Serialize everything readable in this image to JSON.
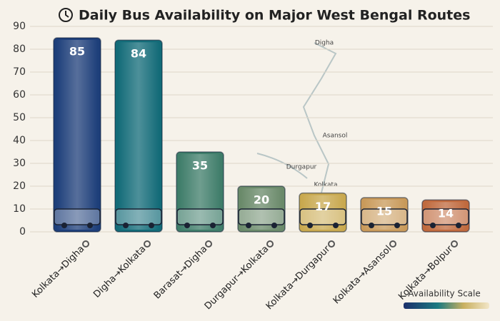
{
  "chart_data": {
    "type": "bar",
    "title": "Daily Bus Availability on Major West Bengal Routes",
    "categories": [
      "Kolkata→Digha",
      "Digha→Kolkata",
      "Barasat→Digha",
      "Durgapur→Kolkata",
      "Kolkata→Durgapur",
      "Kolkata→Asansol",
      "Kolkata→Bolpur"
    ],
    "values": [
      85,
      84,
      35,
      20,
      17,
      15,
      14
    ],
    "colors": [
      "#1e3f7a",
      "#136b78",
      "#3f7d6a",
      "#6a8a6a",
      "#c9a94f",
      "#c99a5a",
      "#c06a3e"
    ],
    "ylim": [
      0,
      90
    ],
    "yticks": [
      0,
      10,
      20,
      30,
      40,
      50,
      60,
      70,
      80,
      90
    ],
    "grid": true,
    "map_labels": [
      "Digha",
      "Asansol",
      "Durgapur",
      "Kolkata"
    ],
    "legend_title": "Availability Scale"
  }
}
